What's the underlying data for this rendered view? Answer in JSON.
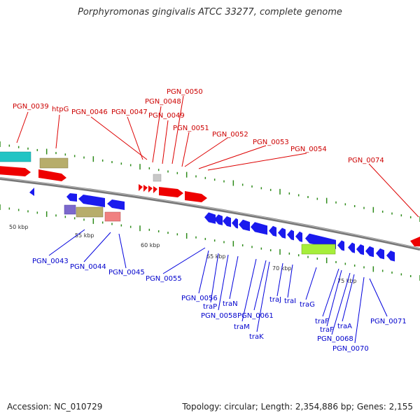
{
  "title": "Porphyromonas gingivalis ATCC 33277, complete genome",
  "footer": {
    "accession": "Accession: NC_010729",
    "summary": "Topology: circular; Length: 2,354,886 bp; Genes: 2,155"
  },
  "colors": {
    "forward_label": "#cc0000",
    "reverse_label": "#0000cc",
    "backbone": "#777777",
    "tick": "#2e8b1a",
    "gene_red": "#ee0000",
    "gene_blue": "#1a1aee",
    "gene_cyan": "#22c4c4",
    "gene_olive": "#b7ad6b",
    "gene_purple": "#7b68cc",
    "gene_pink": "#f08080",
    "gene_lime": "#a6ee3a",
    "gene_grey": "#c8c8c8"
  },
  "scale_labels": [
    "50 kbp",
    "55 kbp",
    "60 kbp",
    "65 kbp",
    "70 kbp",
    "75 kbp"
  ],
  "forward_labels": [
    "PGN_0039",
    "htpG",
    "PGN_0046",
    "PGN_0047",
    "PGN_0048",
    "PGN_0049",
    "PGN_0050",
    "PGN_0051",
    "PGN_0052",
    "PGN_0053",
    "PGN_0054",
    "PGN_0074"
  ],
  "reverse_labels": [
    "PGN_0043",
    "PGN_0044",
    "PGN_0045",
    "PGN_0055",
    "PGN_0056",
    "traP",
    "PGN_0058",
    "traN",
    "traM",
    "PGN_0061",
    "traK",
    "traJ",
    "traI",
    "traG",
    "traF",
    "traF",
    "PGN_0068",
    "traA",
    "PGN_0070",
    "PGN_0071"
  ]
}
